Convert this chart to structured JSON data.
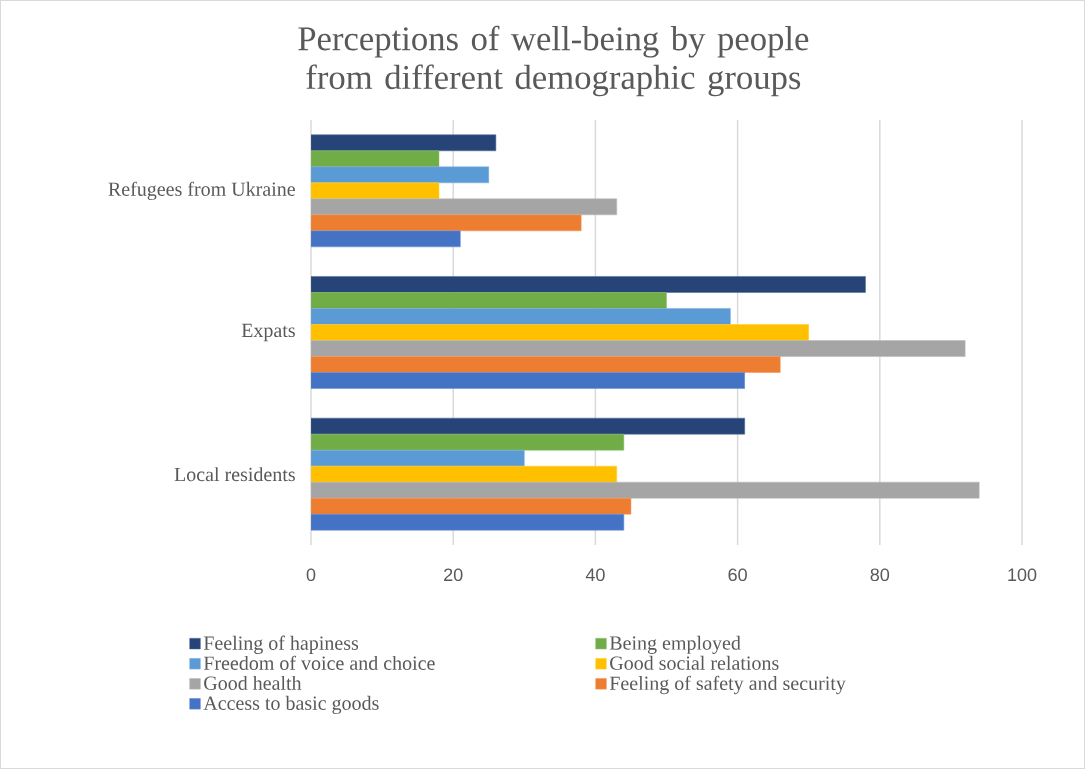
{
  "chart_data": {
    "type": "bar",
    "orientation": "horizontal",
    "title": "Perceptions of well-being by people from different demographic groups",
    "categories": [
      "Refugees from Ukraine",
      "Expats",
      "Local residents"
    ],
    "series": [
      {
        "name": "Feeling of hapiness",
        "color": "#264478",
        "values": [
          26,
          78,
          61
        ]
      },
      {
        "name": "Being employed",
        "color": "#70ad47",
        "values": [
          18,
          50,
          44
        ]
      },
      {
        "name": "Freedom of voice and choice",
        "color": "#5b9bd5",
        "values": [
          25,
          59,
          30
        ]
      },
      {
        "name": "Good social relations",
        "color": "#ffc000",
        "values": [
          18,
          70,
          43
        ]
      },
      {
        "name": "Good health",
        "color": "#a5a5a5",
        "values": [
          43,
          92,
          94
        ]
      },
      {
        "name": "Feeling of safety and security",
        "color": "#ed7d31",
        "values": [
          38,
          66,
          45
        ]
      },
      {
        "name": "Access to basic goods",
        "color": "#4472c4",
        "values": [
          21,
          61,
          44
        ]
      }
    ],
    "xlim": [
      0,
      100
    ],
    "xticks": [
      0,
      20,
      40,
      60,
      80,
      100
    ],
    "grid": "x",
    "legend": "bottom"
  }
}
